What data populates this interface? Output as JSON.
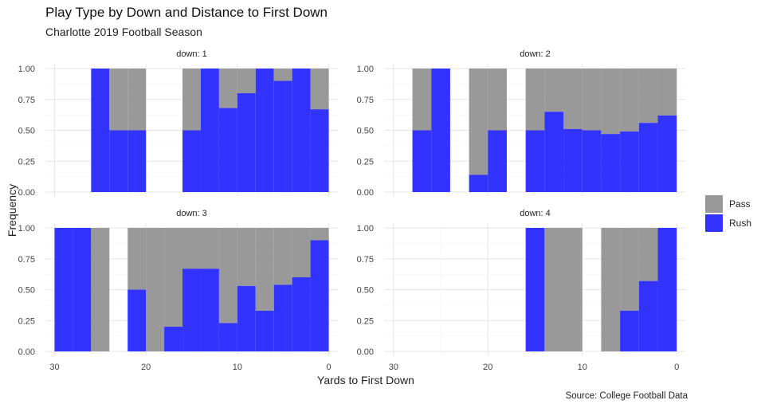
{
  "title": "Play Type by Down and Distance to First Down",
  "subtitle": "Charlotte 2019 Football Season",
  "caption": "Source: College Football Data",
  "chart_data": {
    "type": "bar",
    "stacking": "fill",
    "facet": "down",
    "xlabel": "Yards to First Down",
    "ylabel": "Frequency",
    "x_reversed": true,
    "xlim": [
      31,
      -1
    ],
    "ylim": [
      0,
      1
    ],
    "x_ticks": [
      30,
      20,
      10,
      0
    ],
    "x_tick_labels": [
      "30",
      "20",
      "10",
      "0"
    ],
    "y_ticks": [
      0,
      0.25,
      0.5,
      0.75,
      1
    ],
    "y_tick_labels": [
      "0.00",
      "0.25",
      "0.50",
      "0.75",
      "1.00"
    ],
    "grid": true,
    "legend_position": "right",
    "series": [
      {
        "name": "Pass",
        "color": "#999999"
      },
      {
        "name": "Rush",
        "color": "#3333ff"
      }
    ],
    "panels": [
      {
        "strip": "down: 1",
        "bins": [
          {
            "x": 25,
            "rush": 1.0
          },
          {
            "x": 23,
            "rush": 0.5
          },
          {
            "x": 21,
            "rush": 0.5
          },
          {
            "x": 15,
            "rush": 0.5
          },
          {
            "x": 13,
            "rush": 1.0
          },
          {
            "x": 11,
            "rush": 0.68
          },
          {
            "x": 9,
            "rush": 0.8
          },
          {
            "x": 7,
            "rush": 1.0
          },
          {
            "x": 5,
            "rush": 0.9
          },
          {
            "x": 3,
            "rush": 1.0
          },
          {
            "x": 1,
            "rush": 0.67
          }
        ]
      },
      {
        "strip": "down: 2",
        "bins": [
          {
            "x": 27,
            "rush": 0.5
          },
          {
            "x": 25,
            "rush": 1.0
          },
          {
            "x": 21,
            "rush": 0.14
          },
          {
            "x": 19,
            "rush": 0.5
          },
          {
            "x": 15,
            "rush": 0.5
          },
          {
            "x": 13,
            "rush": 0.65
          },
          {
            "x": 11,
            "rush": 0.51
          },
          {
            "x": 9,
            "rush": 0.5
          },
          {
            "x": 7,
            "rush": 0.47
          },
          {
            "x": 5,
            "rush": 0.49
          },
          {
            "x": 3,
            "rush": 0.56
          },
          {
            "x": 1,
            "rush": 0.62
          }
        ]
      },
      {
        "strip": "down: 3",
        "bins": [
          {
            "x": 29,
            "rush": 1.0
          },
          {
            "x": 27,
            "rush": 1.0
          },
          {
            "x": 25,
            "rush": 0.0
          },
          {
            "x": 21,
            "rush": 0.5
          },
          {
            "x": 19,
            "rush": 0.0
          },
          {
            "x": 17,
            "rush": 0.2
          },
          {
            "x": 15,
            "rush": 0.67
          },
          {
            "x": 13,
            "rush": 0.67
          },
          {
            "x": 11,
            "rush": 0.23
          },
          {
            "x": 9,
            "rush": 0.53
          },
          {
            "x": 7,
            "rush": 0.33
          },
          {
            "x": 5,
            "rush": 0.54
          },
          {
            "x": 3,
            "rush": 0.6
          },
          {
            "x": 1,
            "rush": 0.9
          }
        ]
      },
      {
        "strip": "down: 4",
        "bins": [
          {
            "x": 15,
            "rush": 1.0
          },
          {
            "x": 13,
            "rush": 0.0
          },
          {
            "x": 11,
            "rush": 0.0
          },
          {
            "x": 7,
            "rush": 0.0
          },
          {
            "x": 5,
            "rush": 0.33
          },
          {
            "x": 3,
            "rush": 0.57
          },
          {
            "x": 1,
            "rush": 1.0
          }
        ]
      }
    ]
  }
}
